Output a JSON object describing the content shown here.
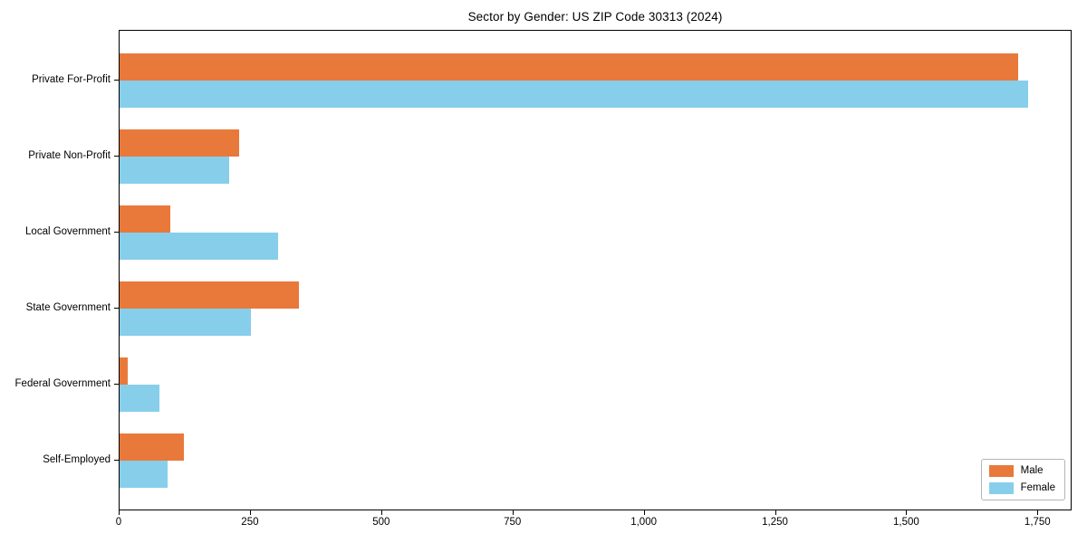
{
  "chart_data": {
    "type": "bar",
    "orientation": "horizontal",
    "title": "Sector by Gender: US ZIP Code 30313 (2024)",
    "categories": [
      "Private For-Profit",
      "Private Non-Profit",
      "Local Government",
      "State Government",
      "Federal Government",
      "Self-Employed"
    ],
    "series": [
      {
        "name": "Male",
        "color": "#e8793b",
        "values": [
          1715,
          228,
          97,
          342,
          15,
          122
        ]
      },
      {
        "name": "Female",
        "color": "#87ceeb",
        "values": [
          1733,
          209,
          303,
          250,
          76,
          91
        ]
      }
    ],
    "xlabel": "",
    "ylabel": "",
    "xlim": [
      0,
      1815
    ],
    "xticks": [
      {
        "value": 0,
        "label": "0"
      },
      {
        "value": 250,
        "label": "250"
      },
      {
        "value": 500,
        "label": "500"
      },
      {
        "value": 750,
        "label": "750"
      },
      {
        "value": 1000,
        "label": "1,000"
      },
      {
        "value": 1250,
        "label": "1,250"
      },
      {
        "value": 1500,
        "label": "1,500"
      },
      {
        "value": 1750,
        "label": "1,750"
      }
    ],
    "grid": false,
    "legend_position": "lower right",
    "colors": {
      "axis": "#000000",
      "legend_border": "#b5b5b5",
      "background": "#ffffff"
    }
  }
}
